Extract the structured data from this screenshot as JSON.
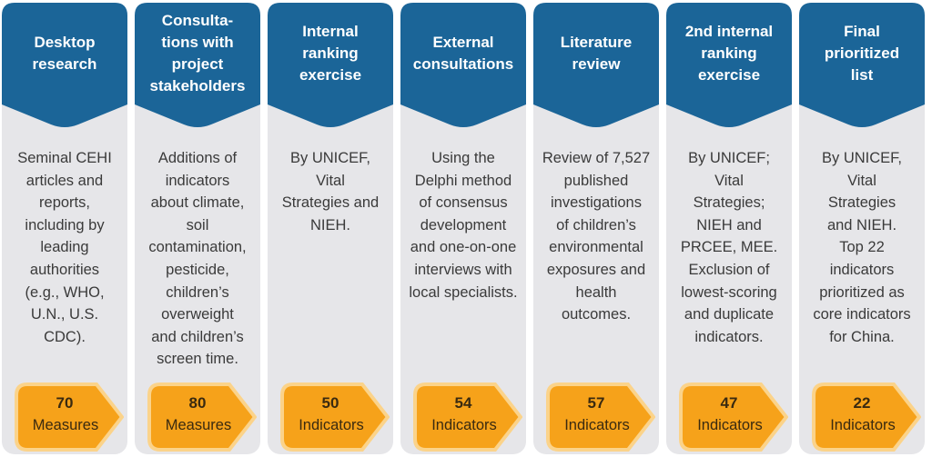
{
  "colors": {
    "header": "#1b6598",
    "card": "#e6e6e9",
    "badge": "#f6a21a",
    "badge_border": "#fbd38a"
  },
  "steps": [
    {
      "title": "Desktop\nresearch",
      "description": "Seminal CEHI\narticles and\nreports,\nincluding by\nleading\nauthorities\n(e.g., WHO,\nU.N., U.S.\nCDC).",
      "count": "70",
      "unit": "Measures"
    },
    {
      "title": "Consulta-\ntions with\nproject\nstakeholders",
      "description": "Additions of\nindicators\nabout climate,\nsoil\ncontamination,\npesticide,\nchildren’s\noverweight\nand children’s\nscreen time.",
      "count": "80",
      "unit": "Measures"
    },
    {
      "title": "Internal\nranking\nexercise",
      "description": "By UNICEF,\nVital\nStrategies and\nNIEH.",
      "count": "50",
      "unit": "Indicators"
    },
    {
      "title": "External\nconsultations",
      "description": "Using the\nDelphi method\nof consensus\ndevelopment\nand one-on-one\ninterviews with\nlocal specialists.",
      "count": "54",
      "unit": "Indicators"
    },
    {
      "title": "Literature\nreview",
      "description": "Review of 7,527\npublished\ninvestigations\nof children’s\nenvironmental\nexposures and\nhealth\noutcomes.",
      "count": "57",
      "unit": "Indicators"
    },
    {
      "title": "2nd internal\nranking\nexercise",
      "description": "By UNICEF;\nVital\nStrategies;\nNIEH and\nPRCEE, MEE.\nExclusion of\nlowest-scoring\nand duplicate\nindicators.",
      "count": "47",
      "unit": "Indicators"
    },
    {
      "title": "Final\nprioritized\nlist",
      "description": "By UNICEF,\nVital\nStrategies\nand NIEH.\nTop 22\nindicators\nprioritized as\ncore indicators\nfor China.",
      "count": "22",
      "unit": "Indicators"
    }
  ]
}
